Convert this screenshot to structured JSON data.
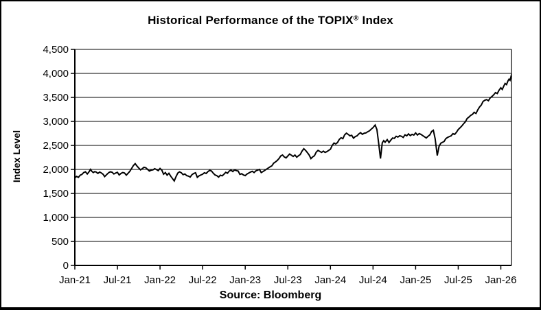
{
  "figure": {
    "title": {
      "prefix": "Historical Performance of the TOPIX",
      "registered": "®",
      "suffix": " Index"
    },
    "source": "Source: Bloomberg"
  },
  "chart_data": {
    "type": "line",
    "title": "Historical Performance of the TOPIX® Index",
    "xlabel": "",
    "ylabel": "Index Level",
    "source_note": "Source: Bloomberg",
    "legend": "none",
    "grid": "horizontal",
    "line_color": "#000000",
    "background_color": "#ffffff",
    "x_tick_labels": [
      "Jan-21",
      "Jul-21",
      "Jan-22",
      "Jul-22",
      "Jan-23",
      "Jul-23",
      "Jan-24",
      "Jul-24",
      "Jan-25",
      "Jul-25",
      "Jan-26"
    ],
    "x_tick_months": [
      0,
      6,
      12,
      18,
      24,
      30,
      36,
      42,
      48,
      54,
      60
    ],
    "x_range_months": [
      0,
      61.5
    ],
    "ylim": [
      0,
      4500
    ],
    "y_ticks": [
      0,
      500,
      1000,
      1500,
      2000,
      2500,
      3000,
      3500,
      4000,
      4500
    ],
    "y_tick_labels": [
      "0",
      "500",
      "1,000",
      "1,500",
      "2,000",
      "2,500",
      "3,000",
      "3,500",
      "4,000",
      "4,500"
    ],
    "series": [
      {
        "name": "TOPIX Index Level",
        "x_unit": "months since Jan-2021",
        "points": [
          [
            0,
            1825
          ],
          [
            0.25,
            1855
          ],
          [
            0.5,
            1835
          ],
          [
            0.75,
            1880
          ],
          [
            1,
            1895
          ],
          [
            1.25,
            1935
          ],
          [
            1.5,
            1950
          ],
          [
            1.75,
            1905
          ],
          [
            2,
            1950
          ],
          [
            2.2,
            2000
          ],
          [
            2.4,
            1960
          ],
          [
            2.6,
            1935
          ],
          [
            2.8,
            1955
          ],
          [
            3,
            1945
          ],
          [
            3.25,
            1915
          ],
          [
            3.5,
            1945
          ],
          [
            3.75,
            1925
          ],
          [
            4,
            1895
          ],
          [
            4.2,
            1850
          ],
          [
            4.4,
            1880
          ],
          [
            4.6,
            1910
          ],
          [
            4.8,
            1935
          ],
          [
            5,
            1950
          ],
          [
            5.25,
            1940
          ],
          [
            5.5,
            1905
          ],
          [
            5.75,
            1925
          ],
          [
            6,
            1940
          ],
          [
            6.25,
            1885
          ],
          [
            6.5,
            1915
          ],
          [
            6.75,
            1935
          ],
          [
            7,
            1925
          ],
          [
            7.25,
            1880
          ],
          [
            7.5,
            1920
          ],
          [
            7.75,
            1960
          ],
          [
            8,
            2020
          ],
          [
            8.25,
            2080
          ],
          [
            8.5,
            2120
          ],
          [
            8.75,
            2070
          ],
          [
            9,
            2030
          ],
          [
            9.25,
            1990
          ],
          [
            9.5,
            2015
          ],
          [
            9.75,
            2045
          ],
          [
            10,
            2035
          ],
          [
            10.25,
            2000
          ],
          [
            10.5,
            1965
          ],
          [
            10.75,
            1985
          ],
          [
            11,
            1990
          ],
          [
            11.25,
            2015
          ],
          [
            11.5,
            1995
          ],
          [
            11.75,
            1975
          ],
          [
            12,
            2020
          ],
          [
            12.25,
            1985
          ],
          [
            12.5,
            1900
          ],
          [
            12.75,
            1935
          ],
          [
            13,
            1880
          ],
          [
            13.25,
            1920
          ],
          [
            13.5,
            1860
          ],
          [
            13.75,
            1810
          ],
          [
            14,
            1760
          ],
          [
            14.25,
            1850
          ],
          [
            14.5,
            1925
          ],
          [
            14.75,
            1950
          ],
          [
            15,
            1930
          ],
          [
            15.25,
            1890
          ],
          [
            15.5,
            1905
          ],
          [
            15.75,
            1870
          ],
          [
            16,
            1860
          ],
          [
            16.25,
            1840
          ],
          [
            16.5,
            1890
          ],
          [
            16.75,
            1915
          ],
          [
            17,
            1930
          ],
          [
            17.25,
            1835
          ],
          [
            17.5,
            1865
          ],
          [
            17.75,
            1885
          ],
          [
            18,
            1900
          ],
          [
            18.25,
            1930
          ],
          [
            18.5,
            1915
          ],
          [
            18.75,
            1955
          ],
          [
            19,
            1980
          ],
          [
            19.25,
            1965
          ],
          [
            19.5,
            1920
          ],
          [
            19.75,
            1885
          ],
          [
            20,
            1870
          ],
          [
            20.25,
            1840
          ],
          [
            20.5,
            1880
          ],
          [
            20.75,
            1865
          ],
          [
            21,
            1900
          ],
          [
            21.25,
            1940
          ],
          [
            21.5,
            1920
          ],
          [
            21.75,
            1965
          ],
          [
            22,
            1985
          ],
          [
            22.25,
            1955
          ],
          [
            22.5,
            1990
          ],
          [
            22.75,
            1975
          ],
          [
            23,
            1965
          ],
          [
            23.25,
            1895
          ],
          [
            23.5,
            1910
          ],
          [
            23.75,
            1885
          ],
          [
            24,
            1870
          ],
          [
            24.25,
            1905
          ],
          [
            24.5,
            1925
          ],
          [
            24.75,
            1945
          ],
          [
            25,
            1960
          ],
          [
            25.25,
            1935
          ],
          [
            25.5,
            1970
          ],
          [
            25.75,
            1985
          ],
          [
            26,
            2000
          ],
          [
            26.25,
            1935
          ],
          [
            26.5,
            1955
          ],
          [
            26.75,
            1980
          ],
          [
            27,
            2005
          ],
          [
            27.25,
            2030
          ],
          [
            27.5,
            2055
          ],
          [
            27.75,
            2075
          ],
          [
            28,
            2130
          ],
          [
            28.25,
            2155
          ],
          [
            28.5,
            2185
          ],
          [
            28.75,
            2225
          ],
          [
            29,
            2280
          ],
          [
            29.25,
            2300
          ],
          [
            29.5,
            2260
          ],
          [
            29.75,
            2240
          ],
          [
            30,
            2280
          ],
          [
            30.25,
            2320
          ],
          [
            30.5,
            2295
          ],
          [
            30.75,
            2270
          ],
          [
            31,
            2300
          ],
          [
            31.25,
            2255
          ],
          [
            31.5,
            2285
          ],
          [
            31.75,
            2310
          ],
          [
            32,
            2380
          ],
          [
            32.25,
            2430
          ],
          [
            32.5,
            2395
          ],
          [
            32.75,
            2350
          ],
          [
            33,
            2300
          ],
          [
            33.25,
            2225
          ],
          [
            33.5,
            2260
          ],
          [
            33.75,
            2285
          ],
          [
            34,
            2360
          ],
          [
            34.25,
            2395
          ],
          [
            34.5,
            2375
          ],
          [
            34.75,
            2355
          ],
          [
            35,
            2380
          ],
          [
            35.25,
            2355
          ],
          [
            35.5,
            2370
          ],
          [
            35.75,
            2395
          ],
          [
            36,
            2420
          ],
          [
            36.25,
            2500
          ],
          [
            36.5,
            2550
          ],
          [
            36.75,
            2530
          ],
          [
            37,
            2560
          ],
          [
            37.25,
            2625
          ],
          [
            37.5,
            2660
          ],
          [
            37.75,
            2640
          ],
          [
            38,
            2720
          ],
          [
            38.25,
            2755
          ],
          [
            38.5,
            2730
          ],
          [
            38.75,
            2700
          ],
          [
            39,
            2710
          ],
          [
            39.25,
            2650
          ],
          [
            39.5,
            2685
          ],
          [
            39.75,
            2700
          ],
          [
            40,
            2740
          ],
          [
            40.25,
            2765
          ],
          [
            40.5,
            2730
          ],
          [
            40.75,
            2755
          ],
          [
            41,
            2760
          ],
          [
            41.25,
            2785
          ],
          [
            41.5,
            2805
          ],
          [
            41.75,
            2840
          ],
          [
            42,
            2870
          ],
          [
            42.3,
            2925
          ],
          [
            42.55,
            2830
          ],
          [
            42.8,
            2540
          ],
          [
            43.05,
            2227
          ],
          [
            43.3,
            2555
          ],
          [
            43.5,
            2600
          ],
          [
            43.7,
            2565
          ],
          [
            44,
            2620
          ],
          [
            44.25,
            2560
          ],
          [
            44.5,
            2610
          ],
          [
            44.75,
            2655
          ],
          [
            45,
            2645
          ],
          [
            45.25,
            2690
          ],
          [
            45.5,
            2675
          ],
          [
            45.75,
            2700
          ],
          [
            46,
            2690
          ],
          [
            46.25,
            2665
          ],
          [
            46.5,
            2720
          ],
          [
            46.75,
            2700
          ],
          [
            47,
            2740
          ],
          [
            47.25,
            2705
          ],
          [
            47.5,
            2730
          ],
          [
            47.75,
            2715
          ],
          [
            48,
            2760
          ],
          [
            48.25,
            2715
          ],
          [
            48.5,
            2745
          ],
          [
            48.75,
            2730
          ],
          [
            49,
            2705
          ],
          [
            49.25,
            2680
          ],
          [
            49.5,
            2655
          ],
          [
            49.75,
            2690
          ],
          [
            50,
            2720
          ],
          [
            50.25,
            2790
          ],
          [
            50.5,
            2815
          ],
          [
            50.75,
            2640
          ],
          [
            51.05,
            2290
          ],
          [
            51.3,
            2480
          ],
          [
            51.55,
            2545
          ],
          [
            51.8,
            2565
          ],
          [
            52,
            2580
          ],
          [
            52.25,
            2640
          ],
          [
            52.5,
            2665
          ],
          [
            52.75,
            2685
          ],
          [
            53,
            2700
          ],
          [
            53.25,
            2745
          ],
          [
            53.5,
            2730
          ],
          [
            53.75,
            2775
          ],
          [
            54,
            2830
          ],
          [
            54.25,
            2865
          ],
          [
            54.5,
            2905
          ],
          [
            54.75,
            2950
          ],
          [
            55,
            2990
          ],
          [
            55.25,
            3060
          ],
          [
            55.5,
            3090
          ],
          [
            55.75,
            3125
          ],
          [
            56,
            3145
          ],
          [
            56.25,
            3190
          ],
          [
            56.5,
            3165
          ],
          [
            56.75,
            3240
          ],
          [
            57,
            3300
          ],
          [
            57.25,
            3340
          ],
          [
            57.5,
            3415
          ],
          [
            57.75,
            3440
          ],
          [
            58,
            3455
          ],
          [
            58.25,
            3430
          ],
          [
            58.5,
            3490
          ],
          [
            58.75,
            3520
          ],
          [
            59,
            3555
          ],
          [
            59.25,
            3600
          ],
          [
            59.5,
            3580
          ],
          [
            59.75,
            3650
          ],
          [
            60,
            3700
          ],
          [
            60.2,
            3665
          ],
          [
            60.4,
            3730
          ],
          [
            60.6,
            3790
          ],
          [
            60.8,
            3765
          ],
          [
            61,
            3840
          ],
          [
            61.15,
            3880
          ],
          [
            61.3,
            3855
          ],
          [
            61.45,
            3945
          ],
          [
            61.5,
            3920
          ]
        ]
      }
    ]
  }
}
